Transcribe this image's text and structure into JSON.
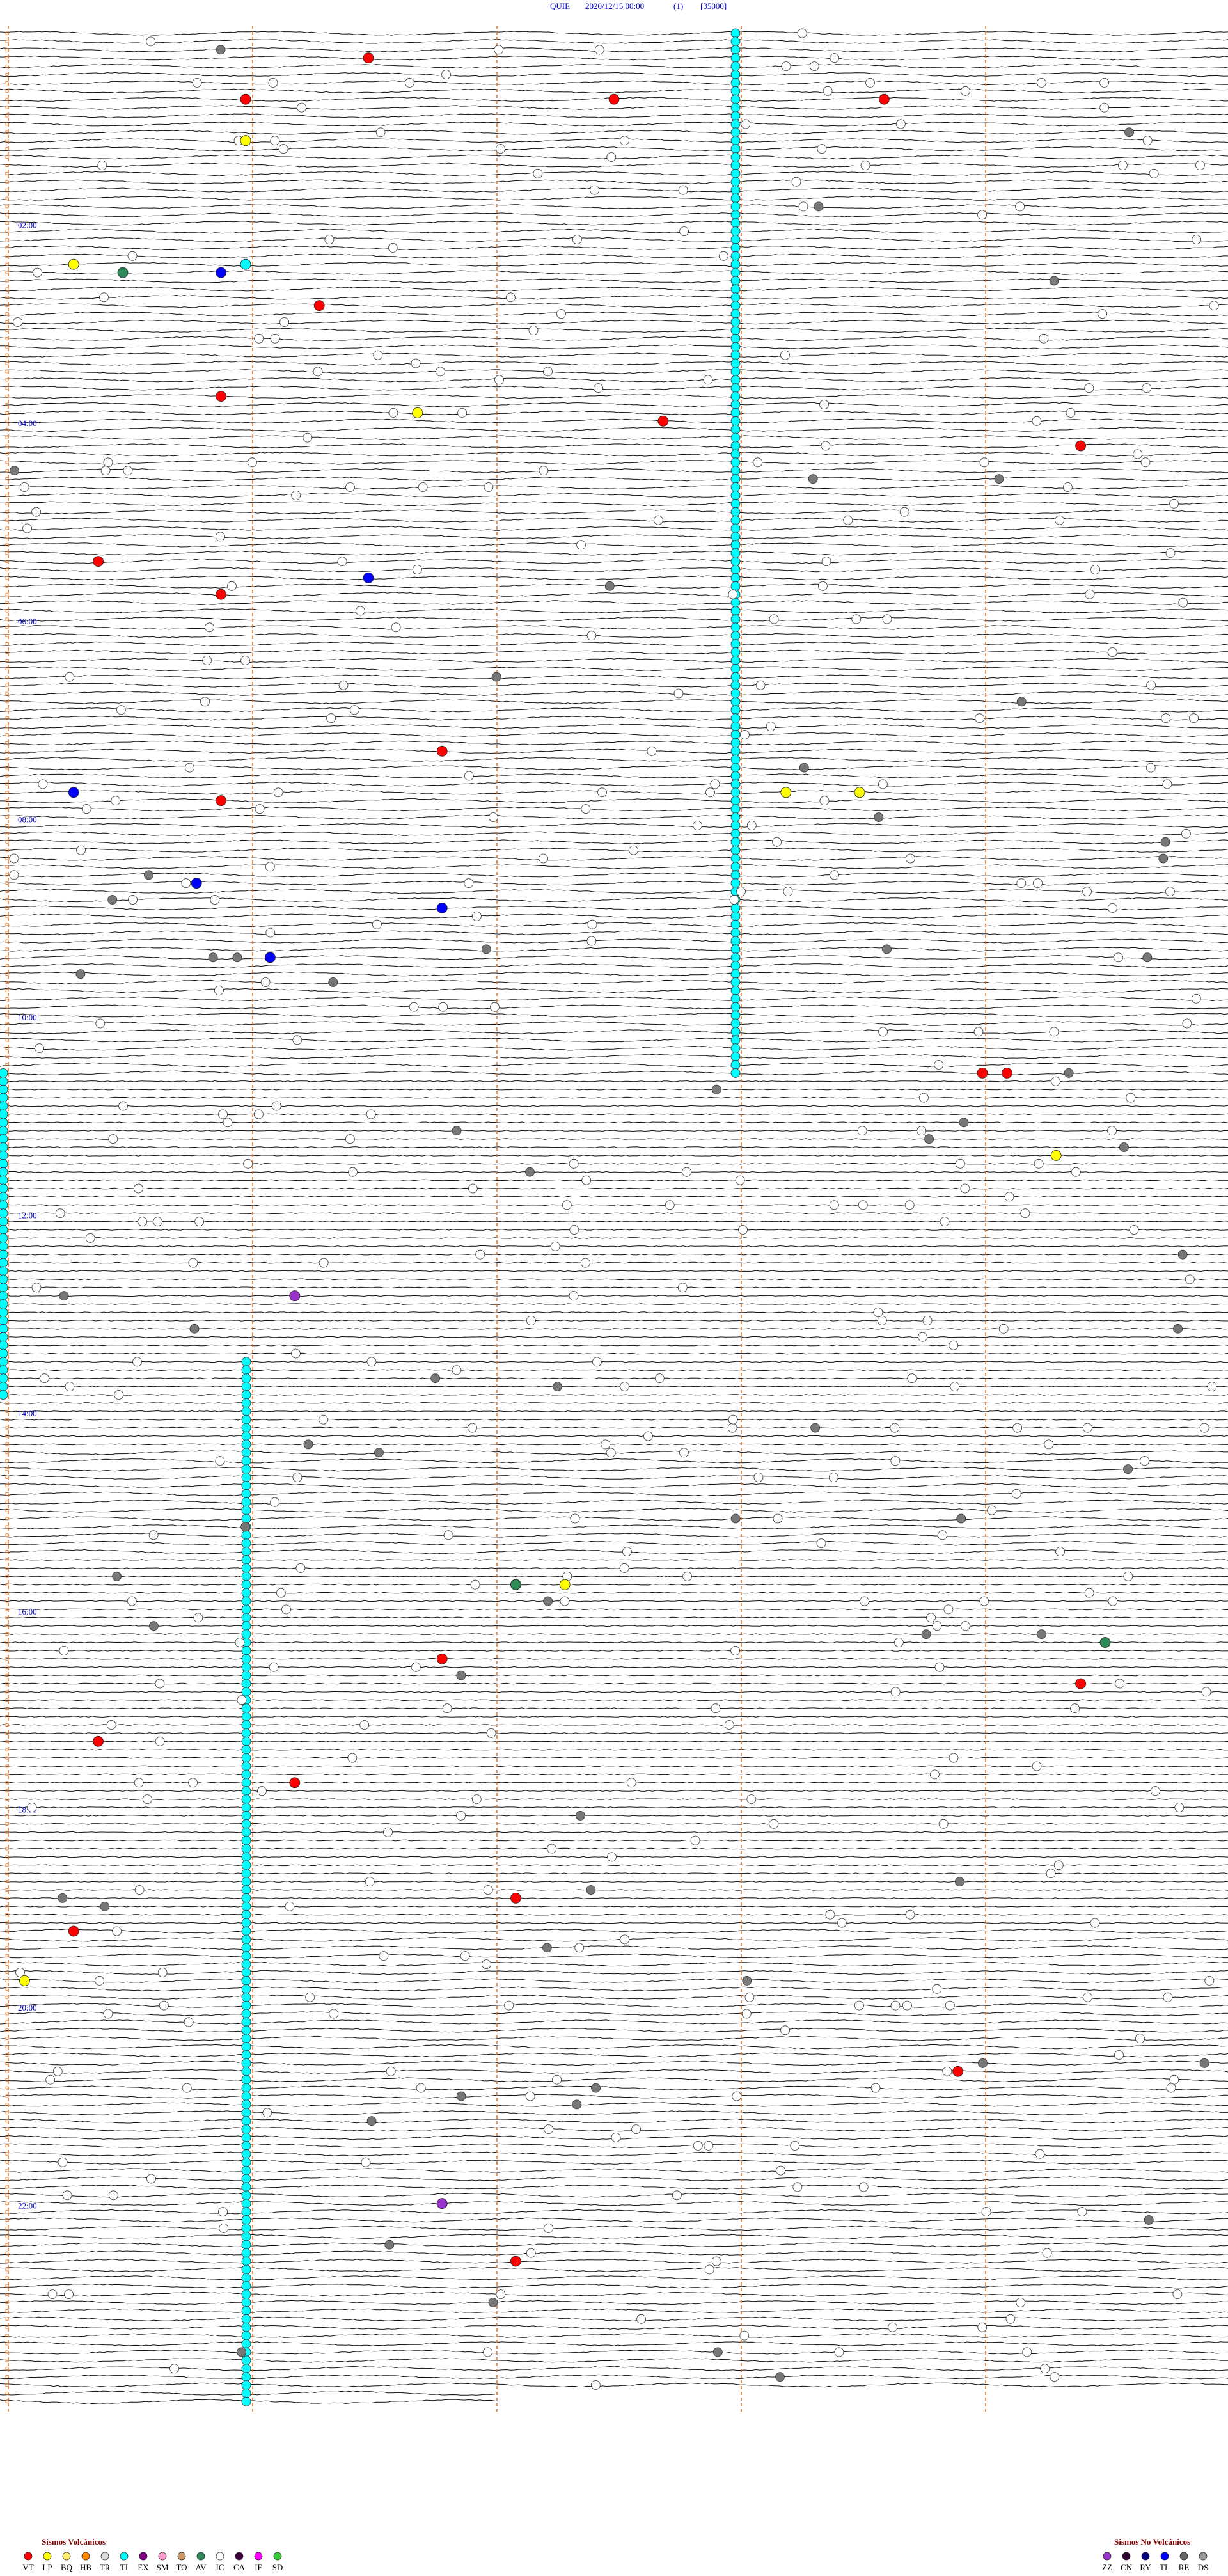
{
  "chart_data": {
    "type": "helicorder",
    "station": "QUIE",
    "datetime": "2020/12/15 00:00",
    "channel": "(1)",
    "scale": "[35000]",
    "hour_labels": [
      "02:00",
      "04:00",
      "06:00",
      "08:00",
      "10:00",
      "12:00",
      "14:00",
      "16:00",
      "18:00",
      "20:00",
      "22:00"
    ],
    "legend": {
      "volcanic": {
        "title": "Sismos Volcánicos",
        "types": [
          {
            "code": "VT",
            "color": "#ff0000"
          },
          {
            "code": "LP",
            "color": "#ffff00"
          },
          {
            "code": "BQ",
            "color": "#ffee66"
          },
          {
            "code": "HB",
            "color": "#ff8800"
          },
          {
            "code": "TR",
            "color": "#dddddd"
          },
          {
            "code": "TI",
            "color": "#00ffff"
          },
          {
            "code": "EX",
            "color": "#800080"
          },
          {
            "code": "SM",
            "color": "#ff99cc"
          },
          {
            "code": "TO",
            "color": "#cc9966"
          },
          {
            "code": "AV",
            "color": "#2e8b57"
          },
          {
            "code": "IC",
            "color": "#ffffff"
          },
          {
            "code": "CA",
            "color": "#400040"
          },
          {
            "code": "IF",
            "color": "#ff00ff"
          },
          {
            "code": "SD",
            "color": "#33cc33"
          }
        ]
      },
      "non_volcanic": {
        "title": "Sismos No Volcánicos",
        "types": [
          {
            "code": "ZZ",
            "color": "#9933cc"
          },
          {
            "code": "CN",
            "color": "#330033"
          },
          {
            "code": "RY",
            "color": "#000080"
          },
          {
            "code": "TL",
            "color": "#0000ff"
          },
          {
            "code": "RE",
            "color": "#666666"
          },
          {
            "code": "DS",
            "color": "#999999"
          }
        ]
      }
    },
    "events": [
      {
        "code": "VT",
        "minute": 16.5
      },
      {
        "code": "VT",
        "minute": 41
      },
      {
        "code": "VT",
        "minute": 42.5
      },
      {
        "code": "VT",
        "minute": 43.6
      },
      {
        "code": "LP",
        "minute": 66
      },
      {
        "code": "TL",
        "minute": 145.9
      },
      {
        "code": "LP",
        "minute": 140.3
      },
      {
        "code": "AV",
        "minute": 145.5
      },
      {
        "code": "TI",
        "minute": 141
      },
      {
        "code": "VT",
        "minute": 166.3
      },
      {
        "code": "VT",
        "minute": 220.9
      },
      {
        "code": "VT",
        "minute": 237.7
      },
      {
        "code": "VT",
        "minute": 254.4
      },
      {
        "code": "LP",
        "minute": 231.7
      },
      {
        "code": "VT",
        "minute": 320.4
      },
      {
        "code": "TL",
        "minute": 331.5
      },
      {
        "code": "VT",
        "minute": 340.9
      },
      {
        "code": "VT",
        "minute": 436.8
      },
      {
        "code": "VT",
        "minute": 465.9
      },
      {
        "code": "TL",
        "minute": 460.3
      },
      {
        "code": "LP",
        "minute": 463.2
      },
      {
        "code": "LP",
        "minute": 463.5
      },
      {
        "code": "TL",
        "minute": 515.8
      },
      {
        "code": "TL",
        "minute": 531.8
      },
      {
        "code": "TL",
        "minute": 561.1
      },
      {
        "code": "VT",
        "minute": 634
      },
      {
        "code": "VT",
        "minute": 634.1
      },
      {
        "code": "LP",
        "minute": 684.3
      },
      {
        "code": "ZZ",
        "minute": 766.2
      },
      {
        "code": "VT",
        "minute": 986.8
      },
      {
        "code": "VT",
        "minute": 1035.4
      },
      {
        "code": "VT",
        "minute": 1061.2
      },
      {
        "code": "VT",
        "minute": 1132.1
      },
      {
        "code": "VT",
        "minute": 1150.3
      },
      {
        "code": "VT",
        "minute": 1238.9
      },
      {
        "code": "LP",
        "minute": 1180.1
      },
      {
        "code": "ZZ",
        "minute": 1316.8
      },
      {
        "code": "VT",
        "minute": 1352.1
      },
      {
        "code": "LP",
        "minute": 942.1
      },
      {
        "code": "LP",
        "minute": 942.3
      },
      {
        "code": "AV",
        "minute": 942.1
      },
      {
        "code": "AV",
        "minute": 979.5
      },
      {
        "code": "VT",
        "minute": 1004.4
      }
    ]
  }
}
